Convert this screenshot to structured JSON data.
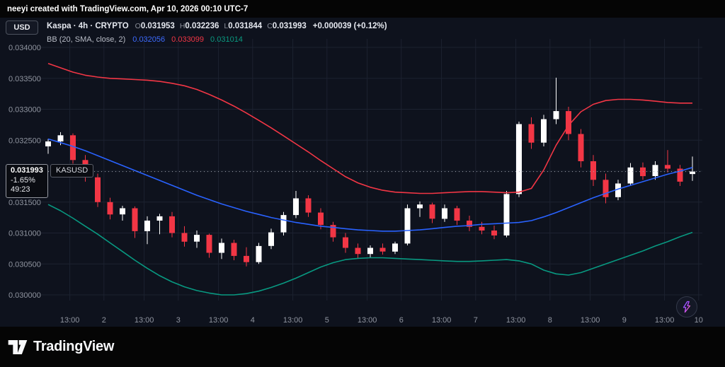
{
  "attribution": {
    "text": "neeyi created with TradingView.com, Apr 10, 2026 00:10 UTC-7"
  },
  "toolbar": {
    "currency_label": "USD"
  },
  "legend": {
    "symbol_title": "Kaspa · 4h · CRYPTO",
    "open_label": "O",
    "open_value": "0.031953",
    "high_label": "H",
    "high_value": "0.032236",
    "low_label": "L",
    "low_value": "0.031844",
    "close_label": "C",
    "close_value": "0.031993",
    "change": "+0.000039 (+0.12%)",
    "indicator_name": "BB (20, SMA, close, 2)",
    "bb_basis_value": "0.032056",
    "bb_upper_value": "0.033099",
    "bb_lower_value": "0.031014"
  },
  "price_label": {
    "price": "0.031993",
    "symbol": "KASUSD",
    "change_pct": "-1.65%",
    "countdown": "49:23"
  },
  "footer": {
    "wordmark": "TradingView"
  },
  "colors": {
    "frame_background": "#050505",
    "chart_background": "#0e121d",
    "grid": "#1c2230",
    "axis_text": "#9095a0",
    "candle_up": "#ffffff",
    "candle_down": "#f23645",
    "bb_upper": "#f23645",
    "bb_basis": "#2962ff",
    "bb_lower": "#089981",
    "price_line": "#a3a6af"
  },
  "chart_data": {
    "type": "candlestick",
    "interval": "4h",
    "grid": true,
    "legend_position": "top-left",
    "price_scale": [
      0.03,
      0.034
    ],
    "y_ticks": [
      "0.034000",
      "0.033500",
      "0.033000",
      "0.032500",
      "0.032000",
      "0.031500",
      "0.031000",
      "0.030500",
      "0.030000"
    ],
    "x_ticks": [
      {
        "label": "13:00",
        "i": 1.75
      },
      {
        "label": "2",
        "i": 4.5
      },
      {
        "label": "13:00",
        "i": 7.75
      },
      {
        "label": "3",
        "i": 10.5
      },
      {
        "label": "13:00",
        "i": 13.75
      },
      {
        "label": "4",
        "i": 16.5
      },
      {
        "label": "13:00",
        "i": 19.75
      },
      {
        "label": "5",
        "i": 22.5
      },
      {
        "label": "13:00",
        "i": 25.75
      },
      {
        "label": "6",
        "i": 28.5
      },
      {
        "label": "13:00",
        "i": 31.75
      },
      {
        "label": "7",
        "i": 34.5
      },
      {
        "label": "13:00",
        "i": 37.75
      },
      {
        "label": "8",
        "i": 40.5
      },
      {
        "label": "13:00",
        "i": 43.75
      },
      {
        "label": "9",
        "i": 46.5
      },
      {
        "label": "13:00",
        "i": 49.75
      },
      {
        "label": "10",
        "i": 52.5
      }
    ],
    "current_price": 0.031993,
    "candles": [
      [
        0.0324,
        0.03252,
        0.03228,
        0.03248
      ],
      [
        0.03248,
        0.03263,
        0.03242,
        0.03258
      ],
      [
        0.03258,
        0.03261,
        0.03212,
        0.03218
      ],
      [
        0.03218,
        0.03226,
        0.03183,
        0.0319
      ],
      [
        0.0319,
        0.03196,
        0.03142,
        0.0315
      ],
      [
        0.0315,
        0.03157,
        0.03122,
        0.0313
      ],
      [
        0.0313,
        0.03144,
        0.0312,
        0.0314
      ],
      [
        0.0314,
        0.03143,
        0.03092,
        0.03103
      ],
      [
        0.03103,
        0.03127,
        0.03082,
        0.0312
      ],
      [
        0.0312,
        0.03131,
        0.03098,
        0.03127
      ],
      [
        0.03127,
        0.03134,
        0.03093,
        0.031
      ],
      [
        0.031,
        0.03111,
        0.03078,
        0.03086
      ],
      [
        0.03086,
        0.03104,
        0.03076,
        0.03097
      ],
      [
        0.03097,
        0.03099,
        0.0306,
        0.03068
      ],
      [
        0.03068,
        0.03091,
        0.03058,
        0.03084
      ],
      [
        0.03084,
        0.03089,
        0.03056,
        0.03063
      ],
      [
        0.03063,
        0.03077,
        0.03046,
        0.03053
      ],
      [
        0.03053,
        0.03084,
        0.0305,
        0.03079
      ],
      [
        0.03079,
        0.03107,
        0.03074,
        0.03101
      ],
      [
        0.03101,
        0.03134,
        0.03096,
        0.03129
      ],
      [
        0.03129,
        0.03168,
        0.03124,
        0.03156
      ],
      [
        0.03156,
        0.03161,
        0.03126,
        0.03133
      ],
      [
        0.03133,
        0.0314,
        0.03106,
        0.03113
      ],
      [
        0.03113,
        0.03118,
        0.03086,
        0.03093
      ],
      [
        0.03093,
        0.031,
        0.03068,
        0.03076
      ],
      [
        0.03076,
        0.03083,
        0.03059,
        0.03066
      ],
      [
        0.03066,
        0.0308,
        0.0306,
        0.03076
      ],
      [
        0.03076,
        0.03083,
        0.03065,
        0.0307
      ],
      [
        0.0307,
        0.03086,
        0.03066,
        0.03083
      ],
      [
        0.03083,
        0.03146,
        0.0308,
        0.0314
      ],
      [
        0.0314,
        0.03151,
        0.03126,
        0.03146
      ],
      [
        0.03146,
        0.03149,
        0.03116,
        0.03123
      ],
      [
        0.03123,
        0.03146,
        0.03118,
        0.0314
      ],
      [
        0.0314,
        0.03144,
        0.03113,
        0.0312
      ],
      [
        0.0312,
        0.03128,
        0.03103,
        0.0311
      ],
      [
        0.0311,
        0.03118,
        0.03098,
        0.03104
      ],
      [
        0.03104,
        0.03112,
        0.0309,
        0.03096
      ],
      [
        0.03096,
        0.03168,
        0.03093,
        0.03163
      ],
      [
        0.03163,
        0.0328,
        0.03158,
        0.03276
      ],
      [
        0.03276,
        0.03287,
        0.03236,
        0.03246
      ],
      [
        0.03246,
        0.03291,
        0.0324,
        0.03284
      ],
      [
        0.03284,
        0.03351,
        0.03276,
        0.03297
      ],
      [
        0.03297,
        0.03304,
        0.0325,
        0.0326
      ],
      [
        0.0326,
        0.03268,
        0.03206,
        0.03216
      ],
      [
        0.03216,
        0.03226,
        0.03176,
        0.03186
      ],
      [
        0.03186,
        0.03196,
        0.03148,
        0.03158
      ],
      [
        0.03158,
        0.03186,
        0.03153,
        0.0318
      ],
      [
        0.0318,
        0.03213,
        0.03176,
        0.03206
      ],
      [
        0.03206,
        0.03214,
        0.03186,
        0.03192
      ],
      [
        0.03192,
        0.03216,
        0.03186,
        0.0321
      ],
      [
        0.0321,
        0.03234,
        0.03198,
        0.03204
      ],
      [
        0.03204,
        0.0321,
        0.03176,
        0.03183
      ],
      [
        0.031953,
        0.032236,
        0.031844,
        0.031993
      ]
    ],
    "bb_upper": [
      0.03374,
      0.03367,
      0.0336,
      0.03355,
      0.03352,
      0.0335,
      0.03349,
      0.03348,
      0.03347,
      0.03345,
      0.03342,
      0.03338,
      0.03332,
      0.03324,
      0.03315,
      0.03305,
      0.03294,
      0.03282,
      0.0327,
      0.03257,
      0.03244,
      0.03231,
      0.03217,
      0.03204,
      0.03191,
      0.03181,
      0.03174,
      0.03169,
      0.03166,
      0.03165,
      0.03164,
      0.03164,
      0.03165,
      0.03166,
      0.03167,
      0.03167,
      0.03166,
      0.03165,
      0.03166,
      0.03172,
      0.03202,
      0.03242,
      0.03274,
      0.03296,
      0.03308,
      0.03314,
      0.03316,
      0.03316,
      0.03315,
      0.03313,
      0.03311,
      0.0331,
      0.0331
    ],
    "bb_basis": [
      0.03252,
      0.03246,
      0.0324,
      0.03233,
      0.03225,
      0.03217,
      0.03209,
      0.03201,
      0.03193,
      0.03185,
      0.03177,
      0.03169,
      0.03161,
      0.03154,
      0.03147,
      0.03141,
      0.03135,
      0.0313,
      0.03125,
      0.03121,
      0.03117,
      0.03114,
      0.03111,
      0.03109,
      0.03107,
      0.03105,
      0.03104,
      0.03103,
      0.03103,
      0.03104,
      0.03105,
      0.03107,
      0.03109,
      0.03111,
      0.03112,
      0.03114,
      0.03115,
      0.03116,
      0.03117,
      0.0312,
      0.03126,
      0.03133,
      0.03141,
      0.03149,
      0.03157,
      0.03164,
      0.03171,
      0.03177,
      0.03183,
      0.03189,
      0.03195,
      0.032,
      0.03206
    ],
    "bb_lower": [
      0.03146,
      0.03136,
      0.03124,
      0.03111,
      0.03098,
      0.03084,
      0.0307,
      0.03056,
      0.03043,
      0.03031,
      0.03021,
      0.03013,
      0.03007,
      0.03003,
      0.03,
      0.03,
      0.03002,
      0.03006,
      0.03012,
      0.03019,
      0.03027,
      0.03036,
      0.03045,
      0.03052,
      0.03057,
      0.03059,
      0.0306,
      0.0306,
      0.03059,
      0.03058,
      0.03057,
      0.03056,
      0.03055,
      0.03054,
      0.03054,
      0.03055,
      0.03056,
      0.03057,
      0.03055,
      0.0305,
      0.0304,
      0.03034,
      0.03032,
      0.03036,
      0.03043,
      0.0305,
      0.03057,
      0.03064,
      0.03071,
      0.03079,
      0.03086,
      0.03094,
      0.03101
    ]
  }
}
